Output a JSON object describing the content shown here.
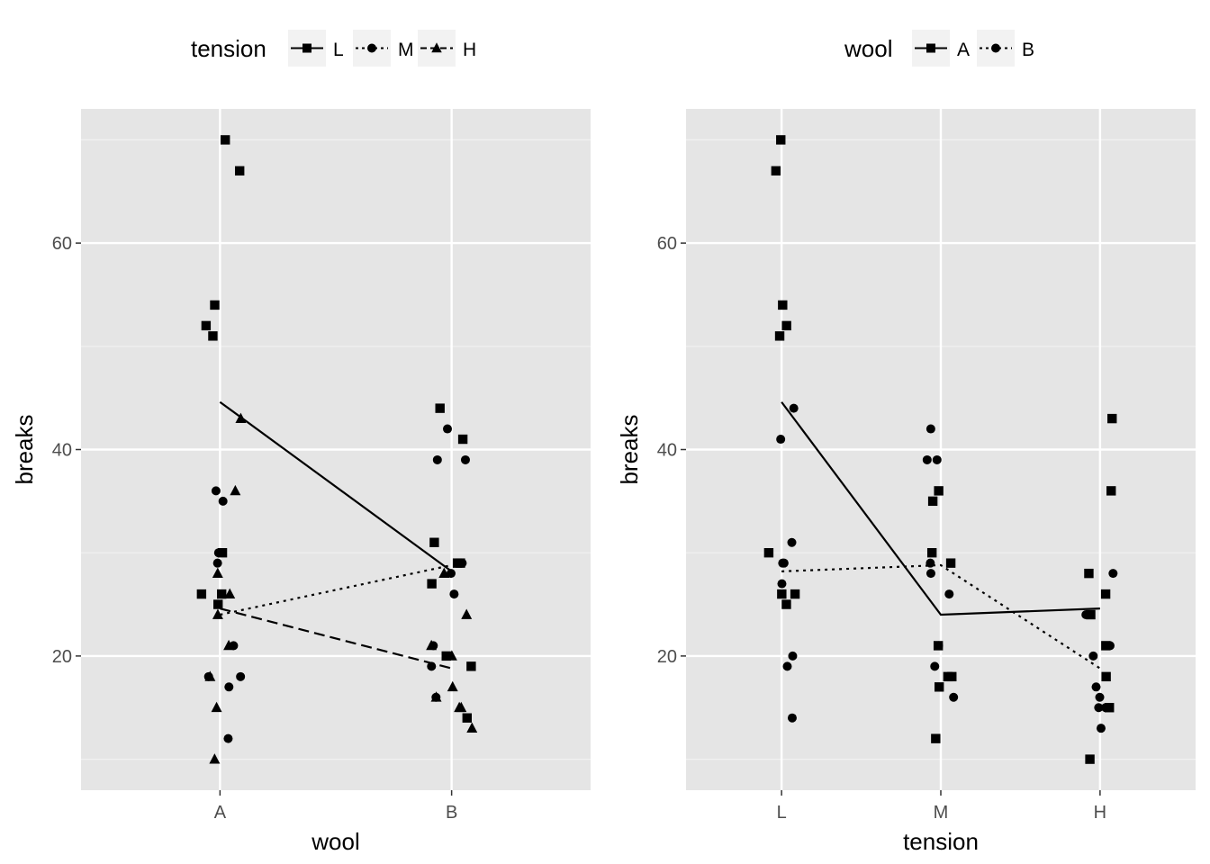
{
  "chart_data": [
    {
      "type": "scatter",
      "xlabel": "wool",
      "ylabel": "breaks",
      "categories": [
        "A",
        "B"
      ],
      "y_ticks": [
        20,
        40,
        60
      ],
      "ylim": [
        7,
        73
      ],
      "legend": {
        "title": "tension",
        "position": "top",
        "entries": [
          "L",
          "M",
          "H"
        ]
      },
      "grid": true,
      "background": "#e5e5e5",
      "series": [
        {
          "name": "L",
          "marker": "square",
          "linetype": "solid",
          "points": [
            {
              "x": "A",
              "y": 26
            },
            {
              "x": "A",
              "y": 30
            },
            {
              "x": "A",
              "y": 54
            },
            {
              "x": "A",
              "y": 25
            },
            {
              "x": "A",
              "y": 70
            },
            {
              "x": "A",
              "y": 52
            },
            {
              "x": "A",
              "y": 51
            },
            {
              "x": "A",
              "y": 26
            },
            {
              "x": "A",
              "y": 67
            },
            {
              "x": "B",
              "y": 27
            },
            {
              "x": "B",
              "y": 14
            },
            {
              "x": "B",
              "y": 29
            },
            {
              "x": "B",
              "y": 19
            },
            {
              "x": "B",
              "y": 29
            },
            {
              "x": "B",
              "y": 31
            },
            {
              "x": "B",
              "y": 41
            },
            {
              "x": "B",
              "y": 20
            },
            {
              "x": "B",
              "y": 44
            }
          ],
          "means": [
            {
              "x": "A",
              "y": 44.6
            },
            {
              "x": "B",
              "y": 28.2
            }
          ]
        },
        {
          "name": "M",
          "marker": "circle",
          "linetype": "dotted",
          "points": [
            {
              "x": "A",
              "y": 18
            },
            {
              "x": "A",
              "y": 21
            },
            {
              "x": "A",
              "y": 29
            },
            {
              "x": "A",
              "y": 17
            },
            {
              "x": "A",
              "y": 12
            },
            {
              "x": "A",
              "y": 18
            },
            {
              "x": "A",
              "y": 35
            },
            {
              "x": "A",
              "y": 30
            },
            {
              "x": "A",
              "y": 36
            },
            {
              "x": "B",
              "y": 42
            },
            {
              "x": "B",
              "y": 26
            },
            {
              "x": "B",
              "y": 19
            },
            {
              "x": "B",
              "y": 16
            },
            {
              "x": "B",
              "y": 39
            },
            {
              "x": "B",
              "y": 28
            },
            {
              "x": "B",
              "y": 21
            },
            {
              "x": "B",
              "y": 39
            },
            {
              "x": "B",
              "y": 29
            }
          ],
          "means": [
            {
              "x": "A",
              "y": 24.0
            },
            {
              "x": "B",
              "y": 28.8
            }
          ]
        },
        {
          "name": "H",
          "marker": "triangle",
          "linetype": "dashed",
          "points": [
            {
              "x": "A",
              "y": 36
            },
            {
              "x": "A",
              "y": 21
            },
            {
              "x": "A",
              "y": 24
            },
            {
              "x": "A",
              "y": 18
            },
            {
              "x": "A",
              "y": 10
            },
            {
              "x": "A",
              "y": 43
            },
            {
              "x": "A",
              "y": 28
            },
            {
              "x": "A",
              "y": 15
            },
            {
              "x": "A",
              "y": 26
            },
            {
              "x": "B",
              "y": 20
            },
            {
              "x": "B",
              "y": 21
            },
            {
              "x": "B",
              "y": 24
            },
            {
              "x": "B",
              "y": 17
            },
            {
              "x": "B",
              "y": 13
            },
            {
              "x": "B",
              "y": 15
            },
            {
              "x": "B",
              "y": 15
            },
            {
              "x": "B",
              "y": 16
            },
            {
              "x": "B",
              "y": 28
            }
          ],
          "means": [
            {
              "x": "A",
              "y": 24.6
            },
            {
              "x": "B",
              "y": 18.8
            }
          ]
        }
      ]
    },
    {
      "type": "scatter",
      "xlabel": "tension",
      "ylabel": "breaks",
      "categories": [
        "L",
        "M",
        "H"
      ],
      "y_ticks": [
        20,
        40,
        60
      ],
      "ylim": [
        7,
        73
      ],
      "legend": {
        "title": "wool",
        "position": "top",
        "entries": [
          "A",
          "B"
        ]
      },
      "grid": true,
      "background": "#e5e5e5",
      "series": [
        {
          "name": "A",
          "marker": "square",
          "linetype": "solid",
          "points": [
            {
              "x": "L",
              "y": 26
            },
            {
              "x": "L",
              "y": 30
            },
            {
              "x": "L",
              "y": 54
            },
            {
              "x": "L",
              "y": 25
            },
            {
              "x": "L",
              "y": 70
            },
            {
              "x": "L",
              "y": 52
            },
            {
              "x": "L",
              "y": 51
            },
            {
              "x": "L",
              "y": 26
            },
            {
              "x": "L",
              "y": 67
            },
            {
              "x": "M",
              "y": 18
            },
            {
              "x": "M",
              "y": 21
            },
            {
              "x": "M",
              "y": 29
            },
            {
              "x": "M",
              "y": 17
            },
            {
              "x": "M",
              "y": 12
            },
            {
              "x": "M",
              "y": 18
            },
            {
              "x": "M",
              "y": 35
            },
            {
              "x": "M",
              "y": 30
            },
            {
              "x": "M",
              "y": 36
            },
            {
              "x": "H",
              "y": 36
            },
            {
              "x": "H",
              "y": 21
            },
            {
              "x": "H",
              "y": 24
            },
            {
              "x": "H",
              "y": 18
            },
            {
              "x": "H",
              "y": 10
            },
            {
              "x": "H",
              "y": 43
            },
            {
              "x": "H",
              "y": 28
            },
            {
              "x": "H",
              "y": 15
            },
            {
              "x": "H",
              "y": 26
            }
          ],
          "means": [
            {
              "x": "L",
              "y": 44.6
            },
            {
              "x": "M",
              "y": 24.0
            },
            {
              "x": "H",
              "y": 24.6
            }
          ]
        },
        {
          "name": "B",
          "marker": "circle",
          "linetype": "dotted",
          "points": [
            {
              "x": "L",
              "y": 27
            },
            {
              "x": "L",
              "y": 14
            },
            {
              "x": "L",
              "y": 29
            },
            {
              "x": "L",
              "y": 19
            },
            {
              "x": "L",
              "y": 29
            },
            {
              "x": "L",
              "y": 31
            },
            {
              "x": "L",
              "y": 41
            },
            {
              "x": "L",
              "y": 20
            },
            {
              "x": "L",
              "y": 44
            },
            {
              "x": "M",
              "y": 42
            },
            {
              "x": "M",
              "y": 26
            },
            {
              "x": "M",
              "y": 19
            },
            {
              "x": "M",
              "y": 16
            },
            {
              "x": "M",
              "y": 39
            },
            {
              "x": "M",
              "y": 28
            },
            {
              "x": "M",
              "y": 21
            },
            {
              "x": "M",
              "y": 39
            },
            {
              "x": "M",
              "y": 29
            },
            {
              "x": "H",
              "y": 20
            },
            {
              "x": "H",
              "y": 21
            },
            {
              "x": "H",
              "y": 24
            },
            {
              "x": "H",
              "y": 17
            },
            {
              "x": "H",
              "y": 13
            },
            {
              "x": "H",
              "y": 15
            },
            {
              "x": "H",
              "y": 15
            },
            {
              "x": "H",
              "y": 16
            },
            {
              "x": "H",
              "y": 28
            }
          ],
          "means": [
            {
              "x": "L",
              "y": 28.2
            },
            {
              "x": "M",
              "y": 28.8
            },
            {
              "x": "H",
              "y": 18.8
            }
          ]
        }
      ]
    }
  ]
}
